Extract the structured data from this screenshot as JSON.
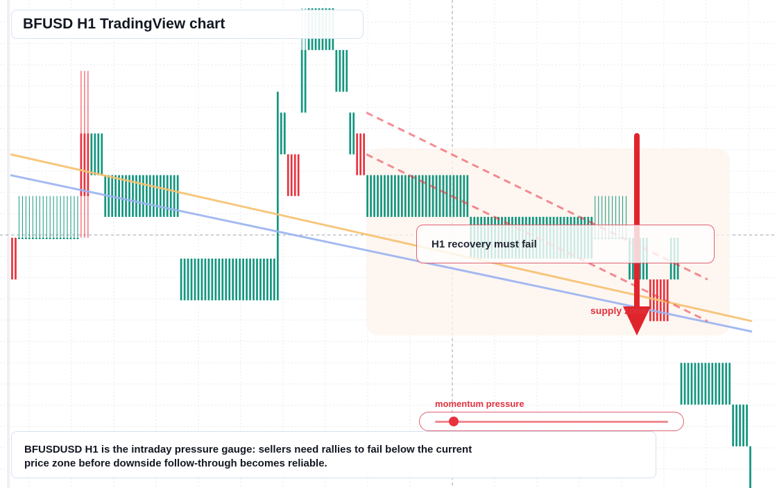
{
  "title": "BFUSD H1 TradingView chart",
  "annotations": {
    "box_label": "H1 recovery must fail",
    "zone_label": "supply zone",
    "gauge_label": "momentum pressure",
    "gauge_level": 0.08
  },
  "note": "BFUSDUSD H1 is the intraday pressure gauge: sellers need rallies to fail below the current price zone before downside follow-through becomes reliable.",
  "colors": {
    "up": "#12967f",
    "down": "#e8323e",
    "trend_orange": "#f6c170",
    "trend_blue": "#9bb3f0",
    "arrow": "#e0242c",
    "grid": "#e6e9ee",
    "zone": "#fdf3ec"
  },
  "chart_data": {
    "type": "candlestick",
    "grid": true,
    "y_range": [
      0,
      23
    ],
    "candles": [
      {
        "o": 12,
        "h": 12,
        "l": 10,
        "c": 10,
        "run": 2
      },
      {
        "o": 12,
        "h": 14,
        "l": 12,
        "c": 12,
        "run": 18
      },
      {
        "o": 14,
        "h": 20,
        "l": 12,
        "c": 17,
        "run": 3
      },
      {
        "o": 17,
        "h": 17,
        "l": 15,
        "c": 15,
        "run": 4
      },
      {
        "o": 15,
        "h": 15,
        "l": 13,
        "c": 13,
        "run": 22
      },
      {
        "o": 11,
        "h": 11,
        "l": 9,
        "c": 9,
        "run": 28
      },
      {
        "o": 9,
        "h": 19,
        "l": 9,
        "c": 19,
        "run": 1
      },
      {
        "o": 18,
        "h": 18,
        "l": 16,
        "c": 16,
        "run": 2
      },
      {
        "o": 16,
        "h": 16,
        "l": 14,
        "c": 14,
        "run": 4
      },
      {
        "o": 18,
        "h": 23,
        "l": 18,
        "c": 21,
        "run": 2
      },
      {
        "o": 21,
        "h": 23,
        "l": 21,
        "c": 23,
        "run": 8
      },
      {
        "o": 21,
        "h": 21,
        "l": 19,
        "c": 19,
        "run": 4
      },
      {
        "o": 18,
        "h": 18,
        "l": 16,
        "c": 16,
        "run": 2
      },
      {
        "o": 17,
        "h": 17,
        "l": 15,
        "c": 15,
        "run": 3
      },
      {
        "o": 15,
        "h": 15,
        "l": 13,
        "c": 13,
        "run": 30
      },
      {
        "o": 13,
        "h": 13,
        "l": 11,
        "c": 11,
        "run": 36
      },
      {
        "o": 12,
        "h": 14,
        "l": 12,
        "c": 12,
        "run": 10
      },
      {
        "o": 12,
        "h": 12,
        "l": 10,
        "c": 10,
        "run": 6
      },
      {
        "o": 10,
        "h": 10,
        "l": 8,
        "c": 8,
        "run": 6
      },
      {
        "o": 12,
        "h": 12,
        "l": 10,
        "c": 10,
        "run": 3
      },
      {
        "o": 6,
        "h": 6,
        "l": 4,
        "c": 4,
        "run": 15
      },
      {
        "o": 4,
        "h": 4,
        "l": 2,
        "c": 2,
        "run": 5
      },
      {
        "o": 2,
        "h": 2,
        "l": 0,
        "c": 0,
        "run": 1
      }
    ],
    "trendlines": [
      {
        "style": "solid",
        "color": "orange",
        "from": [
          0,
          16
        ],
        "to": [
          1,
          8
        ]
      },
      {
        "style": "solid",
        "color": "blue",
        "from": [
          0,
          15
        ],
        "to": [
          1,
          7.5
        ]
      },
      {
        "style": "dashed",
        "color": "red",
        "from": [
          0.48,
          18
        ],
        "to": [
          0.94,
          10
        ]
      },
      {
        "style": "dashed",
        "color": "red",
        "from": [
          0.48,
          16
        ],
        "to": [
          0.94,
          8
        ]
      }
    ]
  }
}
